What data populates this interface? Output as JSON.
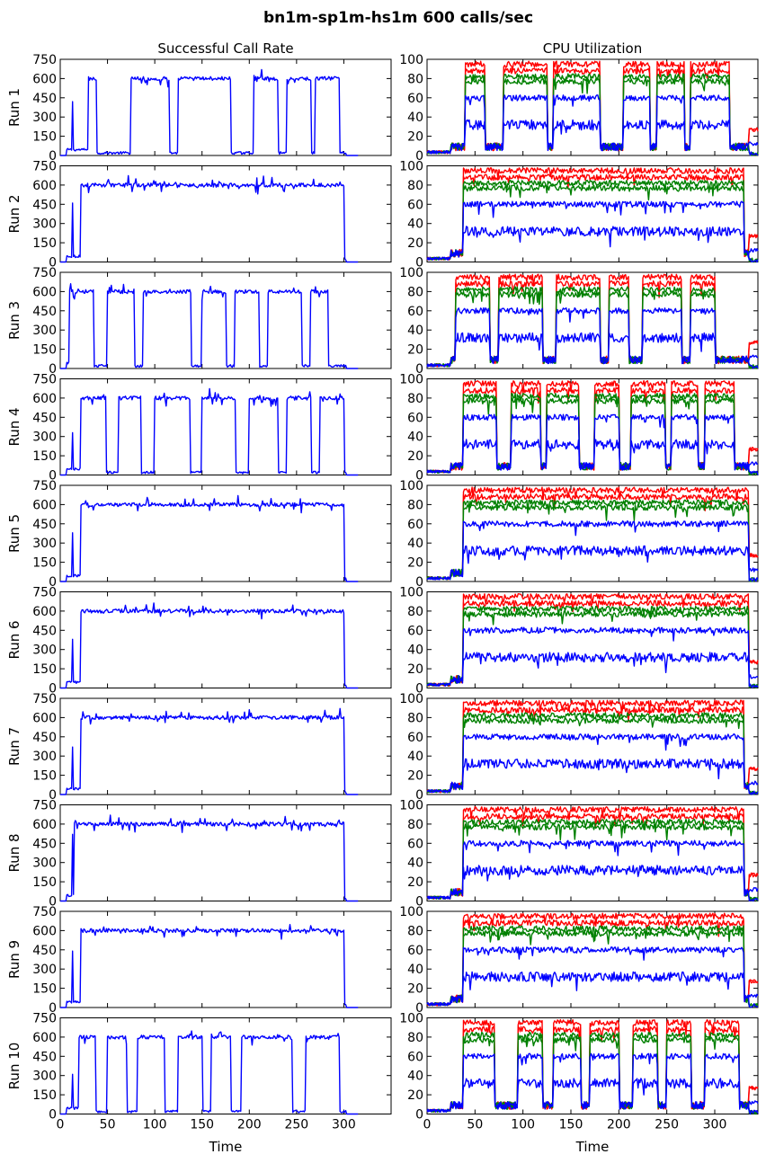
{
  "figure": {
    "title": "bn1m-sp1m-hs1m 600 calls/sec",
    "left_column_title": "Successful Call Rate",
    "right_column_title": "CPU Utilization",
    "xlabel": "Time"
  },
  "colors": {
    "blue": "#0000ff",
    "red": "#ff0000",
    "green": "#008000"
  },
  "chart_data": [
    {
      "type": "line",
      "panel": "call-rate",
      "xlim": [
        0,
        350
      ],
      "ylim": [
        0,
        750
      ],
      "xticks": [
        0,
        50,
        100,
        150,
        200,
        250,
        300
      ],
      "yticks": [
        0,
        150,
        300,
        450,
        600,
        750
      ],
      "series": [
        {
          "color": "blue"
        }
      ],
      "runs": [
        {
          "label": "Run 1",
          "start": 30,
          "on": [
            [
              28,
              38
            ],
            [
              75,
              115
            ],
            [
              125,
              180
            ],
            [
              205,
              230
            ],
            [
              240,
              265
            ],
            [
              270,
              295
            ]
          ],
          "spikes": [
            [
              13,
              420
            ]
          ]
        },
        {
          "label": "Run 2",
          "start": 22,
          "on": [
            [
              22,
              300
            ]
          ],
          "spikes": [
            [
              13,
              460
            ]
          ]
        },
        {
          "label": "Run 3",
          "start": 10,
          "on": [
            [
              10,
              35
            ],
            [
              50,
              78
            ],
            [
              88,
              138
            ],
            [
              150,
              175
            ],
            [
              185,
              210
            ],
            [
              220,
              255
            ],
            [
              265,
              283
            ]
          ]
        },
        {
          "label": "Run 4",
          "start": 22,
          "on": [
            [
              22,
              48
            ],
            [
              62,
              85
            ],
            [
              100,
              137
            ],
            [
              150,
              185
            ],
            [
              200,
              230
            ],
            [
              240,
              265
            ],
            [
              275,
              300
            ]
          ],
          "spikes": [
            [
              13,
              330
            ]
          ]
        },
        {
          "label": "Run 5",
          "start": 22,
          "on": [
            [
              22,
              300
            ]
          ],
          "spikes": [
            [
              13,
              380
            ]
          ]
        },
        {
          "label": "Run 6",
          "start": 22,
          "on": [
            [
              22,
              300
            ]
          ],
          "spikes": [
            [
              13,
              380
            ]
          ]
        },
        {
          "label": "Run 7",
          "start": 22,
          "on": [
            [
              22,
              300
            ]
          ],
          "spikes": [
            [
              13,
              370
            ]
          ]
        },
        {
          "label": "Run 8",
          "start": 15,
          "on": [
            [
              15,
              300
            ]
          ],
          "spikes": [
            [
              13,
              520
            ]
          ]
        },
        {
          "label": "Run 9",
          "start": 22,
          "on": [
            [
              22,
              300
            ]
          ],
          "spikes": [
            [
              13,
              440
            ]
          ]
        },
        {
          "label": "Run 10",
          "start": 20,
          "on": [
            [
              20,
              37
            ],
            [
              50,
              70
            ],
            [
              82,
              110
            ],
            [
              125,
              150
            ],
            [
              160,
              180
            ],
            [
              192,
              245
            ],
            [
              260,
              295
            ]
          ],
          "spikes": [
            [
              13,
              310
            ]
          ]
        }
      ]
    },
    {
      "type": "line",
      "panel": "cpu-utilization",
      "xlim": [
        0,
        345
      ],
      "ylim": [
        0,
        100
      ],
      "xticks": [
        0,
        50,
        100,
        150,
        200,
        250,
        300
      ],
      "yticks": [
        0,
        20,
        40,
        60,
        80,
        100
      ],
      "series": [
        {
          "color": "red",
          "level": 95
        },
        {
          "color": "red",
          "level": 88
        },
        {
          "color": "green",
          "level": 82
        },
        {
          "color": "green",
          "level": 77
        },
        {
          "color": "blue",
          "level": 60
        },
        {
          "color": "blue",
          "level": 32
        }
      ],
      "runs": [
        {
          "label": "Run 1",
          "on": [
            [
              40,
              60
            ],
            [
              80,
              125
            ],
            [
              132,
              180
            ],
            [
              205,
              232
            ],
            [
              240,
              268
            ],
            [
              275,
              315
            ]
          ]
        },
        {
          "label": "Run 2",
          "on": [
            [
              38,
              330
            ]
          ]
        },
        {
          "label": "Run 3",
          "on": [
            [
              30,
              65
            ],
            [
              75,
              120
            ],
            [
              135,
              180
            ],
            [
              190,
              210
            ],
            [
              225,
              265
            ],
            [
              275,
              300
            ]
          ]
        },
        {
          "label": "Run 4",
          "on": [
            [
              38,
              72
            ],
            [
              88,
              118
            ],
            [
              125,
              158
            ],
            [
              175,
              200
            ],
            [
              213,
              248
            ],
            [
              255,
              282
            ],
            [
              290,
              320
            ]
          ]
        },
        {
          "label": "Run 5",
          "on": [
            [
              38,
              335
            ]
          ]
        },
        {
          "label": "Run 6",
          "on": [
            [
              38,
              335
            ]
          ]
        },
        {
          "label": "Run 7",
          "on": [
            [
              38,
              330
            ]
          ]
        },
        {
          "label": "Run 8",
          "on": [
            [
              38,
              330
            ]
          ]
        },
        {
          "label": "Run 9",
          "on": [
            [
              38,
              330
            ]
          ]
        },
        {
          "label": "Run 10",
          "on": [
            [
              38,
              70
            ],
            [
              95,
              120
            ],
            [
              132,
              160
            ],
            [
              170,
              200
            ],
            [
              215,
              240
            ],
            [
              250,
              275
            ],
            [
              290,
              325
            ]
          ]
        }
      ]
    }
  ]
}
